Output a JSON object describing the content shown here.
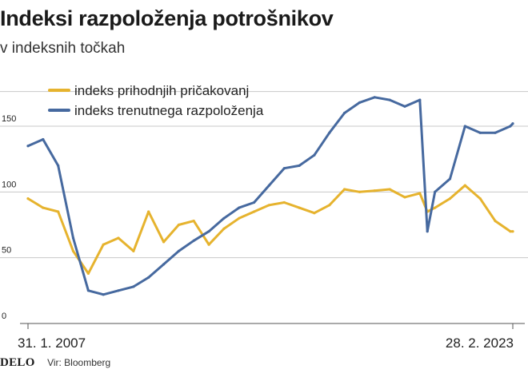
{
  "header": {
    "title": "Indeksi razpoloženja potrošnikov",
    "subtitle": "v indeksnih točkah"
  },
  "footer": {
    "logo": "DELO",
    "source": "Vir: Bloomberg"
  },
  "colors": {
    "expectations": "#e6b32e",
    "current": "#46699f",
    "grid": "#c8c8c8",
    "axis": "#555555",
    "text": "#222222"
  },
  "chart_data": {
    "type": "line",
    "title": "Indeksi razpoloženja potrošnikov",
    "subtitle": "v indeksnih točkah",
    "x_start_label": "31. 1. 2007",
    "x_end_label": "28. 2. 2023",
    "x": [
      "2007-01",
      "2007-07",
      "2008-01",
      "2008-07",
      "2009-01",
      "2009-07",
      "2010-01",
      "2010-07",
      "2011-01",
      "2011-07",
      "2012-01",
      "2012-07",
      "2013-01",
      "2013-07",
      "2014-01",
      "2014-07",
      "2015-01",
      "2015-07",
      "2016-01",
      "2016-07",
      "2017-01",
      "2017-07",
      "2018-01",
      "2018-07",
      "2019-01",
      "2019-07",
      "2020-01",
      "2020-04",
      "2020-07",
      "2021-01",
      "2021-07",
      "2022-01",
      "2022-07",
      "2023-01",
      "2023-02"
    ],
    "ylim": [
      0,
      180
    ],
    "yticks": [
      0,
      50,
      100,
      150
    ],
    "legend_position": "top-left",
    "grid": true,
    "series": [
      {
        "name": "indeks prihodnjih pričakovanj",
        "color": "#e6b32e",
        "values": [
          95,
          88,
          85,
          55,
          38,
          60,
          65,
          55,
          85,
          62,
          75,
          78,
          60,
          72,
          80,
          85,
          90,
          92,
          88,
          84,
          90,
          102,
          100,
          101,
          102,
          96,
          99,
          85,
          88,
          95,
          105,
          95,
          78,
          70,
          70
        ]
      },
      {
        "name": "indeks trenutnega razpoloženja",
        "color": "#46699f",
        "values": [
          135,
          140,
          120,
          65,
          25,
          22,
          25,
          28,
          35,
          45,
          55,
          63,
          70,
          80,
          88,
          92,
          105,
          118,
          120,
          128,
          145,
          160,
          168,
          172,
          170,
          165,
          170,
          70,
          100,
          110,
          150,
          145,
          145,
          150,
          152
        ]
      }
    ]
  }
}
